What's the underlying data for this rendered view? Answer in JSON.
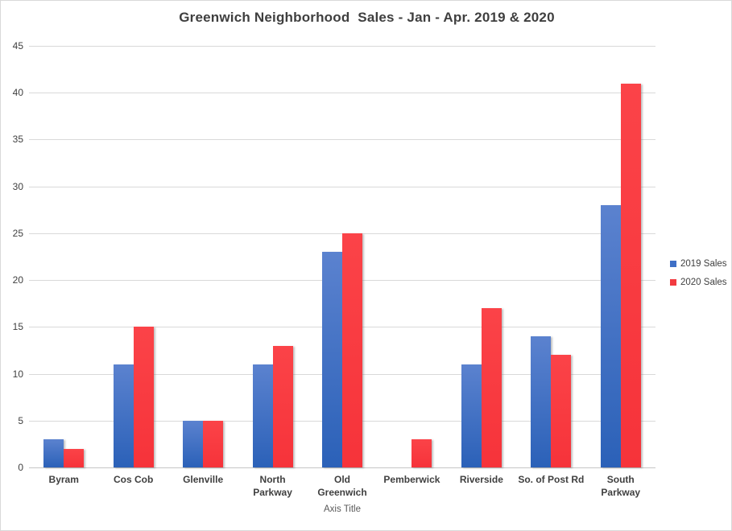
{
  "chart_data": {
    "type": "bar",
    "title": "Greenwich Neighborhood  Sales - Jan - Apr. 2019 & 2020",
    "xlabel": "Axis Title",
    "ylabel": "",
    "categories": [
      "Byram",
      "Cos Cob",
      "Glenville",
      "North\nParkway",
      "Old\nGreenwich",
      "Pemberwick",
      "Riverside",
      "So. of Post Rd",
      "South\nParkway"
    ],
    "series": [
      {
        "name": "2019 Sales",
        "color": "#3e6fc6",
        "gradient_top": "#5b82cf",
        "gradient_bottom": "#2b61b8",
        "values": [
          3,
          11,
          5,
          11,
          23,
          0,
          11,
          14,
          28
        ]
      },
      {
        "name": "2020 Sales",
        "color": "#f23b40",
        "gradient_top": "#fb4348",
        "gradient_bottom": "#f6333a",
        "values": [
          2,
          15,
          5,
          13,
          25,
          3,
          17,
          12,
          41
        ]
      }
    ],
    "ylim": [
      0,
      45
    ],
    "yticks": [
      0,
      5,
      10,
      15,
      20,
      25,
      30,
      35,
      40,
      45
    ],
    "grid": "horizontal",
    "legend_position": "right",
    "colors": {
      "gridline": "#d9d9d9",
      "axis_line": "#c6c6c6",
      "title_text": "#3f3f3f",
      "tick_text": "#3f3f3f",
      "axis_title_text": "#595959"
    }
  }
}
